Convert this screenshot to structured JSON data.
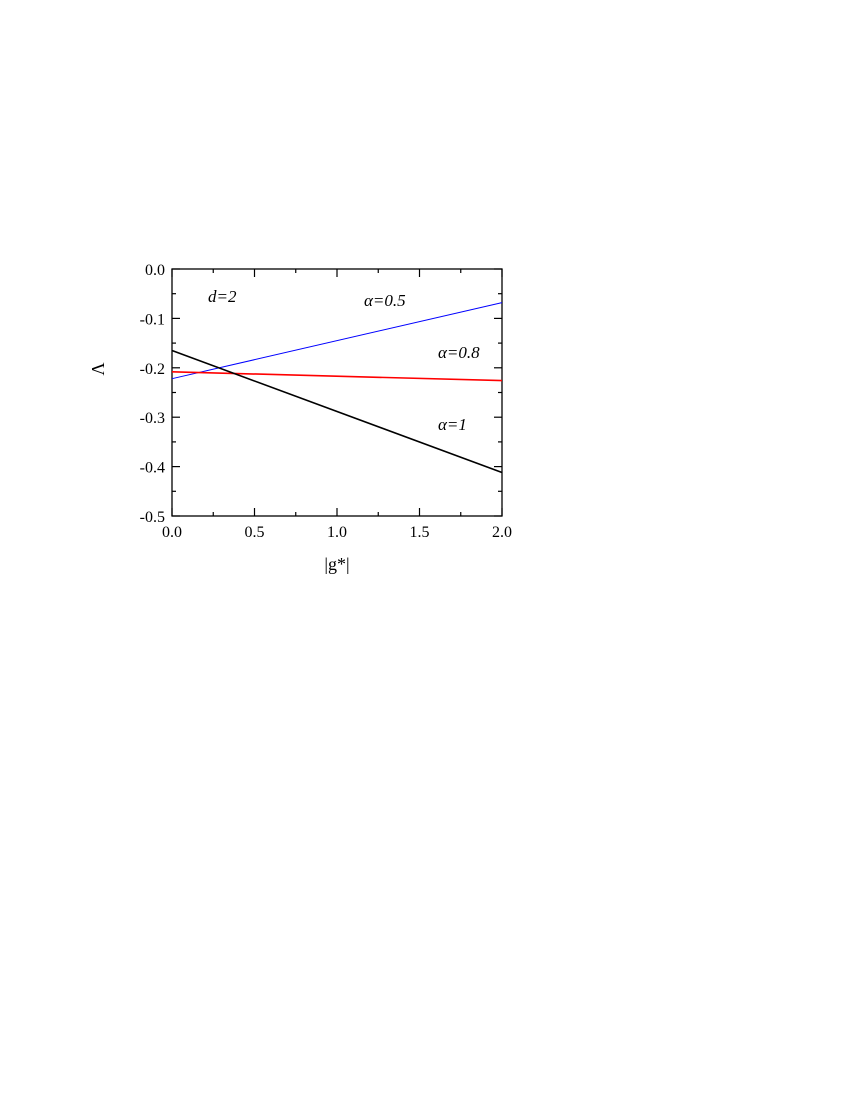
{
  "chart_data": {
    "type": "line",
    "title": "",
    "xlabel": "|g*|",
    "ylabel": "Λ",
    "xlim": [
      0.0,
      2.0
    ],
    "ylim": [
      -0.5,
      0.0
    ],
    "x_ticks": [
      "0.0",
      "0.5",
      "1.0",
      "1.5",
      "2.0"
    ],
    "y_ticks": [
      "0.0",
      "-0.1",
      "-0.2",
      "-0.3",
      "-0.4",
      "-0.5"
    ],
    "grid": false,
    "legend": "none",
    "series": [
      {
        "label": "α=0.5",
        "color": "#0000ff",
        "x": [
          0.0,
          2.0
        ],
        "y": [
          -0.222,
          -0.068
        ]
      },
      {
        "label": "α=0.8",
        "color": "#ff0000",
        "x": [
          0.0,
          2.0
        ],
        "y": [
          -0.208,
          -0.226
        ]
      },
      {
        "label": "α=1",
        "color": "#000000",
        "x": [
          0.0,
          2.0
        ],
        "y": [
          -0.165,
          -0.412
        ]
      }
    ],
    "annotations": [
      {
        "text": "d=2"
      },
      {
        "text": "α=0.5"
      },
      {
        "text": "α=0.8"
      },
      {
        "text": "α=1"
      }
    ]
  }
}
